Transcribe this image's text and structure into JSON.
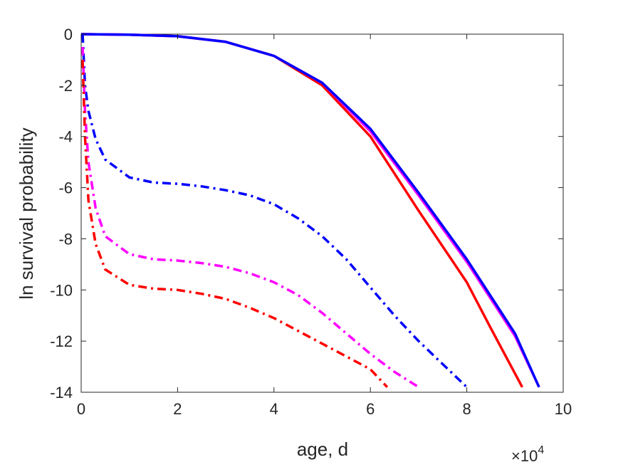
{
  "chart_data": {
    "type": "line",
    "title": "",
    "xlabel": "age, d",
    "ylabel": "ln survival probability",
    "x_multiplier_base": "×10",
    "x_multiplier_exp": "4",
    "xlim": [
      0,
      100000
    ],
    "ylim": [
      -14,
      0
    ],
    "x_ticks": [
      0,
      20000,
      40000,
      60000,
      80000,
      100000
    ],
    "x_tick_labels": [
      "0",
      "2",
      "4",
      "6",
      "8",
      "10"
    ],
    "y_ticks": [
      0,
      -2,
      -4,
      -6,
      -8,
      -10,
      -12,
      -14
    ],
    "y_tick_labels": [
      "0",
      "-2",
      "-4",
      "-6",
      "-8",
      "-10",
      "-12",
      "-14"
    ],
    "grid": false,
    "legend": "none",
    "series": [
      {
        "color": "#ff0000",
        "style": "solid",
        "points": [
          [
            0,
            0
          ],
          [
            10000,
            -0.02
          ],
          [
            20000,
            -0.08
          ],
          [
            30000,
            -0.3
          ],
          [
            40000,
            -0.85
          ],
          [
            50000,
            -2.0
          ],
          [
            60000,
            -4.0
          ],
          [
            70000,
            -6.9
          ],
          [
            80000,
            -9.7
          ],
          [
            85000,
            -11.5
          ],
          [
            91500,
            -13.8
          ]
        ]
      },
      {
        "color": "#ff00ff",
        "style": "solid",
        "points": [
          [
            0,
            0
          ],
          [
            10000,
            -0.02
          ],
          [
            20000,
            -0.08
          ],
          [
            30000,
            -0.3
          ],
          [
            40000,
            -0.85
          ],
          [
            50000,
            -1.9
          ],
          [
            60000,
            -3.8
          ],
          [
            70000,
            -6.3
          ],
          [
            80000,
            -8.9
          ],
          [
            90000,
            -11.8
          ],
          [
            95000,
            -13.8
          ]
        ]
      },
      {
        "color": "#0000ff",
        "style": "solid",
        "points": [
          [
            0,
            0
          ],
          [
            10000,
            -0.02
          ],
          [
            20000,
            -0.08
          ],
          [
            30000,
            -0.3
          ],
          [
            40000,
            -0.85
          ],
          [
            50000,
            -1.9
          ],
          [
            60000,
            -3.7
          ],
          [
            70000,
            -6.2
          ],
          [
            80000,
            -8.8
          ],
          [
            90000,
            -11.7
          ],
          [
            95000,
            -13.8
          ]
        ]
      },
      {
        "color": "#0000ff",
        "style": "dashdot",
        "points": [
          [
            300,
            0
          ],
          [
            800,
            -2.0
          ],
          [
            1500,
            -3.0
          ],
          [
            3000,
            -4.1
          ],
          [
            5000,
            -4.9
          ],
          [
            10000,
            -5.6
          ],
          [
            15000,
            -5.8
          ],
          [
            20000,
            -5.85
          ],
          [
            25000,
            -5.95
          ],
          [
            30000,
            -6.1
          ],
          [
            35000,
            -6.3
          ],
          [
            40000,
            -6.65
          ],
          [
            45000,
            -7.2
          ],
          [
            50000,
            -7.9
          ],
          [
            55000,
            -8.8
          ],
          [
            60000,
            -9.9
          ],
          [
            65000,
            -11.0
          ],
          [
            70000,
            -12.0
          ],
          [
            75000,
            -12.9
          ],
          [
            80000,
            -13.8
          ]
        ]
      },
      {
        "color": "#ff00ff",
        "style": "dashdot",
        "points": [
          [
            300,
            -0.5
          ],
          [
            800,
            -3.0
          ],
          [
            1500,
            -5.0
          ],
          [
            3000,
            -6.8
          ],
          [
            5000,
            -7.9
          ],
          [
            10000,
            -8.6
          ],
          [
            15000,
            -8.8
          ],
          [
            20000,
            -8.85
          ],
          [
            25000,
            -8.95
          ],
          [
            30000,
            -9.1
          ],
          [
            35000,
            -9.35
          ],
          [
            40000,
            -9.7
          ],
          [
            45000,
            -10.2
          ],
          [
            50000,
            -10.9
          ],
          [
            55000,
            -11.7
          ],
          [
            60000,
            -12.5
          ],
          [
            65000,
            -13.2
          ],
          [
            70000,
            -13.8
          ]
        ]
      },
      {
        "color": "#ff0000",
        "style": "dashdot",
        "points": [
          [
            300,
            -1.0
          ],
          [
            800,
            -4.0
          ],
          [
            1500,
            -6.5
          ],
          [
            3000,
            -8.2
          ],
          [
            5000,
            -9.2
          ],
          [
            10000,
            -9.8
          ],
          [
            15000,
            -9.95
          ],
          [
            20000,
            -10.0
          ],
          [
            25000,
            -10.15
          ],
          [
            30000,
            -10.35
          ],
          [
            35000,
            -10.7
          ],
          [
            40000,
            -11.1
          ],
          [
            45000,
            -11.6
          ],
          [
            50000,
            -12.1
          ],
          [
            55000,
            -12.6
          ],
          [
            60000,
            -13.1
          ],
          [
            63500,
            -13.8
          ]
        ]
      }
    ]
  }
}
